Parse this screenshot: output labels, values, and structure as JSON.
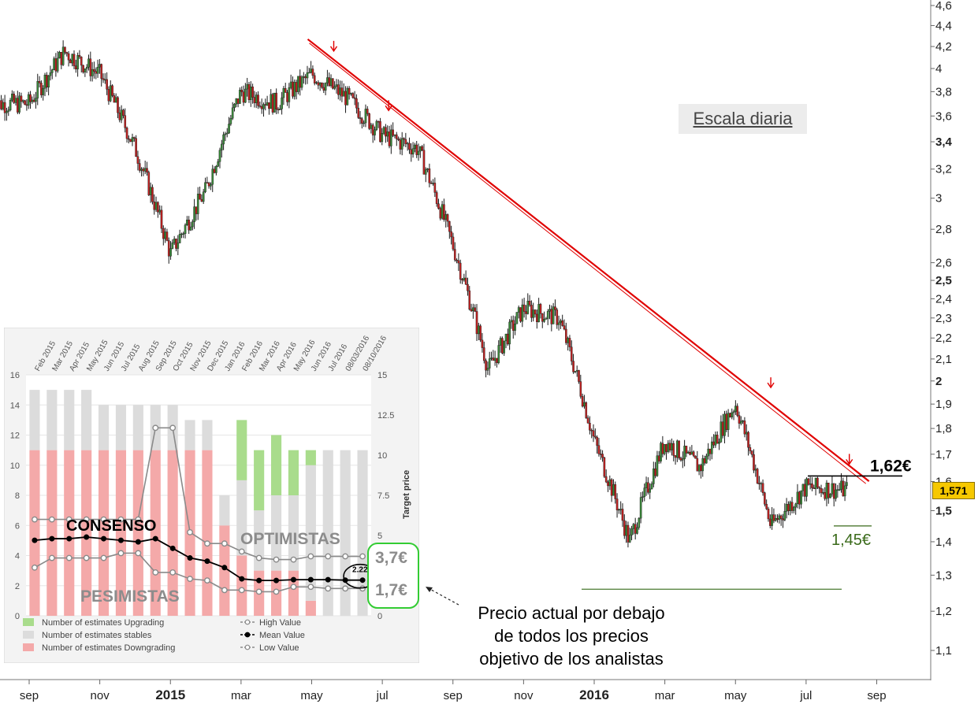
{
  "chart_data": [
    {
      "type": "line",
      "title": "",
      "subtitle": "Escala diaria",
      "scale": "log",
      "y_axis_side": "right",
      "y_ticks": [
        "4,6",
        "4,4",
        "4,2",
        "4",
        "3,8",
        "3,6",
        "3,4",
        "3,2",
        "3",
        "2,8",
        "2,6",
        "2,5",
        "2,4",
        "2,3",
        "2,2",
        "2,1",
        "2",
        "1,9",
        "1,8",
        "1,7",
        "1,6",
        "1,5",
        "1,4",
        "1,3",
        "1,2",
        "1,1"
      ],
      "y_tick_values": [
        4.6,
        4.4,
        4.2,
        4.0,
        3.8,
        3.6,
        3.4,
        3.2,
        3.0,
        2.8,
        2.6,
        2.5,
        2.4,
        2.3,
        2.2,
        2.1,
        2.0,
        1.9,
        1.8,
        1.7,
        1.6,
        1.5,
        1.4,
        1.3,
        1.2,
        1.1
      ],
      "y_ticks_bold": [
        "3,4",
        "2,5",
        "2",
        "1,5"
      ],
      "x_ticks": [
        "sep",
        "nov",
        "2015",
        "mar",
        "may",
        "jul",
        "sep",
        "nov",
        "2016",
        "mar",
        "may",
        "jul",
        "sep"
      ],
      "x_ticks_bold": [
        "2015",
        "2016"
      ],
      "ylim": [
        1.05,
        4.7
      ],
      "current_price_label": "1,571",
      "x": [
        "2014-09",
        "2014-10",
        "2014-11",
        "2014-12",
        "2015-01",
        "2015-02",
        "2015-03",
        "2015-04",
        "2015-05",
        "2015-06",
        "2015-07",
        "2015-08",
        "2015-09",
        "2015-10",
        "2015-11",
        "2015-12",
        "2016-01",
        "2016-02",
        "2016-03",
        "2016-04",
        "2016-05",
        "2016-06",
        "2016-07",
        "2016-08"
      ],
      "series": [
        {
          "values": [
            3.7,
            4.15,
            3.95,
            3.35,
            2.65,
            3.05,
            3.8,
            3.7,
            3.95,
            3.75,
            3.45,
            3.35,
            2.7,
            2.05,
            2.35,
            2.3,
            1.75,
            1.4,
            1.75,
            1.65,
            1.9,
            1.45,
            1.58,
            1.571
          ]
        }
      ],
      "annotations": [
        {
          "type": "resistance_trendline",
          "color": "#e00000",
          "from": [
            "2015-05",
            4.18
          ],
          "to": [
            "2016-08",
            1.59
          ]
        },
        {
          "type": "support_line",
          "color": "#4a7a30",
          "value": 1.26
        },
        {
          "type": "level",
          "label": "1,62€",
          "value": 1.62,
          "color": "#000000"
        },
        {
          "type": "level",
          "label": "1,45€",
          "value": 1.45,
          "color": "#3a6a1a"
        },
        {
          "type": "touch_arrow",
          "color": "#e00000",
          "at": "2015-05",
          "value": 4.05
        },
        {
          "type": "touch_arrow",
          "color": "#e00000",
          "at": "2015-07",
          "value": 3.55
        },
        {
          "type": "touch_arrow",
          "color": "#e00000",
          "at": "2016-06",
          "value": 1.92
        },
        {
          "type": "touch_arrow",
          "color": "#e00000",
          "at": "2016-08",
          "value": 1.62
        }
      ]
    },
    {
      "type": "bar",
      "title": "",
      "categories": [
        "Feb 2015",
        "Mar 2015",
        "Apr 2015",
        "May 2015",
        "Jun 2015",
        "Jul 2015",
        "Aug 2015",
        "Sep 2015",
        "Oct 2015",
        "Nov 2015",
        "Dec 2015",
        "Jan 2016",
        "Feb 2016",
        "Mar 2016",
        "Apr 2016",
        "May 2016",
        "Jun 2016",
        "Jul 2016",
        "08/03/2016",
        "08/10/2016"
      ],
      "ylim_left": [
        0,
        16
      ],
      "left_ticks": [
        "0",
        "2",
        "4",
        "6",
        "8",
        "10",
        "12",
        "14",
        "16"
      ],
      "ylim_right": [
        0,
        15
      ],
      "right_ticks": [
        "0",
        "2.5",
        "5",
        "7.5",
        "10",
        "12.5",
        "15"
      ],
      "ylabel_right": "Target price",
      "series": [
        {
          "name": "Number of estimates Downgrading",
          "color": "#f4a9a9",
          "values": [
            11,
            11,
            11,
            11,
            11,
            11,
            11,
            11,
            11,
            11,
            11,
            6,
            4,
            3,
            3,
            3,
            1,
            0,
            0,
            0
          ]
        },
        {
          "name": "Number of estimates stables",
          "color": "#dcdcdc",
          "values": [
            4,
            4,
            4,
            4,
            3,
            3,
            3,
            3,
            3,
            2,
            2,
            2,
            5,
            4,
            5,
            5,
            9,
            11,
            11,
            11
          ]
        },
        {
          "name": "Number of estimates Upgrading",
          "color": "#a9dc8c",
          "values": [
            0,
            0,
            0,
            0,
            0,
            0,
            0,
            0,
            0,
            0,
            0,
            0,
            4,
            4,
            4,
            3,
            1,
            0,
            0,
            0
          ]
        }
      ],
      "line_series": [
        {
          "name": "High Value",
          "color": "#8a8a8a",
          "values": [
            6,
            6,
            6,
            6,
            6,
            6,
            6,
            11.7,
            11.7,
            5.2,
            4.5,
            4.5,
            4,
            3.6,
            3.5,
            3.5,
            3.7,
            3.7,
            3.7,
            3.7
          ]
        },
        {
          "name": "Mean Value",
          "color": "#000000",
          "values": [
            4.7,
            4.8,
            4.8,
            4.9,
            4.8,
            4.7,
            4.6,
            4.8,
            4.2,
            3.6,
            3.4,
            3.0,
            2.3,
            2.2,
            2.2,
            2.25,
            2.25,
            2.25,
            2.22,
            2.22
          ]
        },
        {
          "name": "Low Value",
          "color": "#8a8a8a",
          "values": [
            3.0,
            3.6,
            3.6,
            3.6,
            3.6,
            3.9,
            3.9,
            2.7,
            2.7,
            2.3,
            2.2,
            1.6,
            1.6,
            1.5,
            1.5,
            1.8,
            1.8,
            1.7,
            1.7,
            1.7
          ]
        }
      ],
      "mean_last_label": "2.22",
      "labels": {
        "consensus": "CONSENSO",
        "optimists": "OPTIMISTAS",
        "pessimists": "PESIMISTAS",
        "high_target": "3,7€",
        "low_target": "1,7€"
      }
    }
  ],
  "note": [
    "Precio actual por debajo",
    "de todos los precios",
    "objetivo de los analistas"
  ]
}
